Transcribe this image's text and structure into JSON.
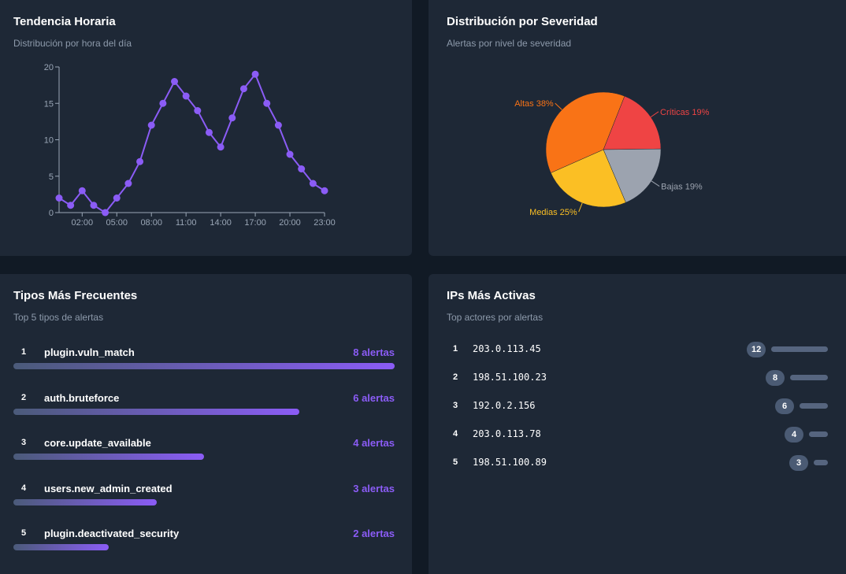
{
  "hourly": {
    "title": "Tendencia Horaria",
    "subtitle": "Distribución por hora del día",
    "chart_data": {
      "type": "line",
      "x": [
        0,
        1,
        2,
        3,
        4,
        5,
        6,
        7,
        8,
        9,
        10,
        11,
        12,
        13,
        14,
        15,
        16,
        17,
        18,
        19,
        20,
        21,
        22,
        23
      ],
      "values": [
        2,
        1,
        3,
        1,
        0,
        2,
        4,
        7,
        12,
        15,
        18,
        16,
        14,
        11,
        9,
        13,
        17,
        19,
        15,
        12,
        8,
        6,
        4,
        3
      ],
      "x_tick_labels": [
        "02:00",
        "05:00",
        "08:00",
        "11:00",
        "14:00",
        "17:00",
        "20:00",
        "23:00"
      ],
      "x_tick_hours": [
        2,
        5,
        8,
        11,
        14,
        17,
        20,
        23
      ],
      "y_ticks": [
        0,
        5,
        10,
        15,
        20
      ],
      "ylim": [
        0,
        20
      ],
      "color": "#8b5cf6"
    }
  },
  "severity": {
    "title": "Distribución por Severidad",
    "subtitle": "Alertas por nivel de severidad",
    "chart_data": {
      "type": "pie",
      "slices": [
        {
          "label": "Críticas 19%",
          "value": 19,
          "color": "#ef4444"
        },
        {
          "label": "Bajas 19%",
          "value": 19,
          "color": "#9ca3af"
        },
        {
          "label": "Medias 25%",
          "value": 25,
          "color": "#fbbf24"
        },
        {
          "label": "Altas 38%",
          "value": 38,
          "color": "#f97316"
        }
      ]
    }
  },
  "types": {
    "title": "Tipos Más Frecuentes",
    "subtitle": "Top 5 tipos de alertas",
    "max": 8,
    "items": [
      {
        "rank": "1",
        "name": "plugin.vuln_match",
        "count": 8,
        "count_label": "8 alertas"
      },
      {
        "rank": "2",
        "name": "auth.bruteforce",
        "count": 6,
        "count_label": "6 alertas"
      },
      {
        "rank": "3",
        "name": "core.update_available",
        "count": 4,
        "count_label": "4 alertas"
      },
      {
        "rank": "4",
        "name": "users.new_admin_created",
        "count": 3,
        "count_label": "3 alertas"
      },
      {
        "rank": "5",
        "name": "plugin.deactivated_security",
        "count": 2,
        "count_label": "2 alertas"
      }
    ]
  },
  "ips": {
    "title": "IPs Más Activas",
    "subtitle": "Top actores por alertas",
    "max": 12,
    "items": [
      {
        "rank": "1",
        "ip": "203.0.113.45",
        "count": 12,
        "count_label": "12"
      },
      {
        "rank": "2",
        "ip": "198.51.100.23",
        "count": 8,
        "count_label": "8"
      },
      {
        "rank": "3",
        "ip": "192.0.2.156",
        "count": 6,
        "count_label": "6"
      },
      {
        "rank": "4",
        "ip": "203.0.113.78",
        "count": 4,
        "count_label": "4"
      },
      {
        "rank": "5",
        "ip": "198.51.100.89",
        "count": 3,
        "count_label": "3"
      }
    ]
  }
}
